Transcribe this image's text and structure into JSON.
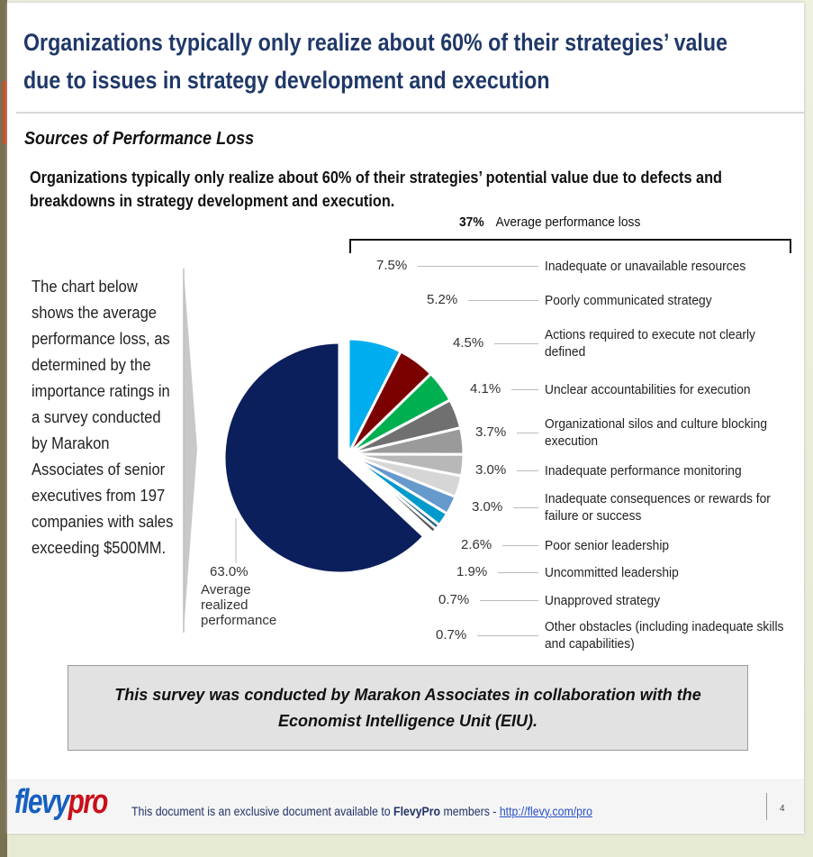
{
  "title": "Organizations typically only realize about 60% of their strategies’ value due to issues in strategy development and execution",
  "title_lines": [
    "Organizations typically only realize about 60% of their strategies’ value",
    "due to issues in strategy development and execution"
  ],
  "subtitle": "Sources of Performance Loss",
  "intro_lines": [
    "Organizations typically only realize about 60% of their strategies’ potential value due to defects and",
    "breakdowns in strategy development and execution."
  ],
  "side_text": "The chart below shows the average performance loss, as determined by the importance ratings in a survey conducted by Marakon Associates of senior executives from 197 companies with sales exceeding $500MM.",
  "loss_header": {
    "value": "37%",
    "label": "Average performance loss"
  },
  "chart_data": {
    "type": "pie",
    "title": "Sources of Performance Loss",
    "realized": {
      "value": 63.0,
      "value_label": "63.0%",
      "label": "Average realized performance",
      "color": "#0b1f5c"
    },
    "slices": [
      {
        "label": "Inadequate or unavailable resources",
        "value": 7.5,
        "value_label": "7.5%",
        "color": "#00aeef"
      },
      {
        "label": "Poorly communicated strategy",
        "value": 5.2,
        "value_label": "5.2%",
        "color": "#7b0000"
      },
      {
        "label": "Actions required to execute not clearly defined",
        "value": 4.5,
        "value_label": "4.5%",
        "color": "#00b050"
      },
      {
        "label": "Unclear accountabilities for execution",
        "value": 4.1,
        "value_label": "4.1%",
        "color": "#707070"
      },
      {
        "label": "Organizational silos and culture blocking execution",
        "value": 3.7,
        "value_label": "3.7%",
        "color": "#9a9a9a"
      },
      {
        "label": "Inadequate performance monitoring",
        "value": 3.0,
        "value_label": "3.0%",
        "color": "#b8b8b8"
      },
      {
        "label": "Inadequate consequences or rewards for failure or success",
        "value": 3.0,
        "value_label": "3.0%",
        "color": "#d6d6d6"
      },
      {
        "label": "Poor senior leadership",
        "value": 2.6,
        "value_label": "2.6%",
        "color": "#6699cc"
      },
      {
        "label": "Uncommitted leadership",
        "value": 1.9,
        "value_label": "1.9%",
        "color": "#0099cc"
      },
      {
        "label": "Unapproved strategy",
        "value": 0.7,
        "value_label": "0.7%",
        "color": "#1f5f7f"
      },
      {
        "label": "Other obstacles (including inadequate skills and capabilities)",
        "value": 0.7,
        "value_label": "0.7%",
        "color": "#555555"
      }
    ]
  },
  "note": "This survey was conducted by Marakon Associates in collaboration with the Economist Intelligence Unit (EIU).",
  "footer": {
    "logo_a": "flevy",
    "logo_b": "pro",
    "text_before": "This document is an exclusive document available to ",
    "brand": "FlevyPro",
    "text_after": " members - ",
    "link": "http://flevy.com/pro",
    "page": "4"
  }
}
